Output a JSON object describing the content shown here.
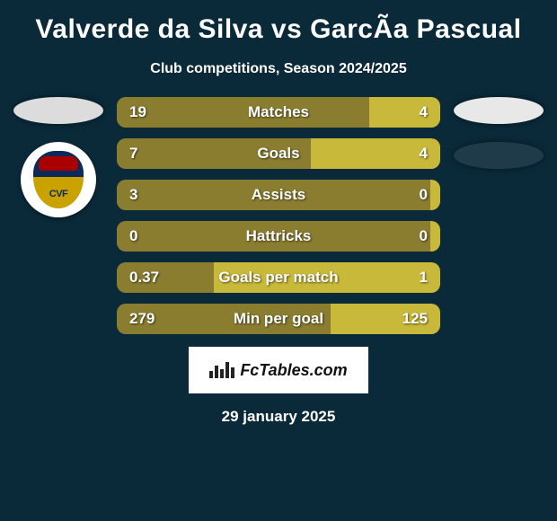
{
  "title": "Valverde da Silva vs GarcÃa Pascual",
  "subtitle": "Club competitions, Season 2024/2025",
  "date": "29 january 2025",
  "watermark_text": "FcTables.com",
  "colors": {
    "background": "#0a2a3a",
    "bar_base": "#8a7d30",
    "bar_right": "#c9b93b",
    "left_oval": "#dcdcdc",
    "right_oval1": "#e8e8e8",
    "right_oval2": "#1f3b4a",
    "text": "#ffffff"
  },
  "crest_left": {
    "has_badge": true
  },
  "crest_right": {
    "has_badge": false
  },
  "bars": [
    {
      "label": "Matches",
      "left": "19",
      "right": "4",
      "left_pct": 78,
      "right_pct": 22
    },
    {
      "label": "Goals",
      "left": "7",
      "right": "4",
      "left_pct": 60,
      "right_pct": 40
    },
    {
      "label": "Assists",
      "left": "3",
      "right": "0",
      "left_pct": 97,
      "right_pct": 3
    },
    {
      "label": "Hattricks",
      "left": "0",
      "right": "0",
      "left_pct": 50,
      "right_pct": 3
    },
    {
      "label": "Goals per match",
      "left": "0.37",
      "right": "1",
      "left_pct": 30,
      "right_pct": 70
    },
    {
      "label": "Min per goal",
      "left": "279",
      "right": "125",
      "left_pct": 66,
      "right_pct": 34
    }
  ]
}
